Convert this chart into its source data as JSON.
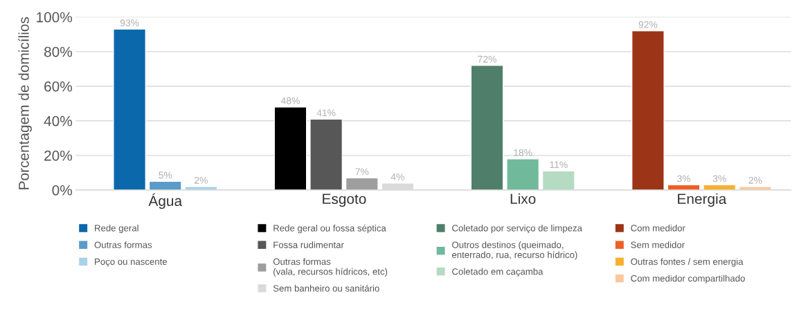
{
  "chart_data": {
    "type": "bar",
    "ylabel": "Porcentagem de domicílios",
    "categories": [
      "Água",
      "Esgoto",
      "Lixo",
      "Energia"
    ],
    "ylim": [
      0,
      100
    ],
    "yticks": [
      {
        "value": 0,
        "label": "0%"
      },
      {
        "value": 20,
        "label": "20%"
      },
      {
        "value": 40,
        "label": "40%"
      },
      {
        "value": 60,
        "label": "60%"
      },
      {
        "value": 80,
        "label": "80%"
      },
      {
        "value": 100,
        "label": "100%"
      }
    ],
    "grid": "y",
    "legend": "bottom",
    "series": [
      {
        "name": "Rede geral",
        "color": "#0b68aa",
        "values": [
          93,
          null,
          null,
          null
        ],
        "value_labels": [
          "93%",
          null,
          null,
          null
        ]
      },
      {
        "name": "Outras formas",
        "color": "#5b9bc8",
        "values": [
          5,
          null,
          null,
          null
        ],
        "value_labels": [
          "5%",
          null,
          null,
          null
        ]
      },
      {
        "name": "Poço ou nascente",
        "color": "#a9d2e8",
        "values": [
          2,
          null,
          null,
          null
        ],
        "value_labels": [
          "2%",
          null,
          null,
          null
        ]
      },
      {
        "name": "Rede geral ou fossa séptica",
        "color": "#000000",
        "values": [
          null,
          48,
          null,
          null
        ],
        "value_labels": [
          null,
          "48%",
          null,
          null
        ]
      },
      {
        "name": "Fossa rudimentar",
        "color": "#575757",
        "values": [
          null,
          41,
          null,
          null
        ],
        "value_labels": [
          null,
          "41%",
          null,
          null
        ]
      },
      {
        "name": "Outras formas\n(vala, recursos hídricos, etc)",
        "color": "#9e9e9e",
        "values": [
          null,
          7,
          null,
          null
        ],
        "value_labels": [
          null,
          "7%",
          null,
          null
        ]
      },
      {
        "name": "Sem banheiro ou sanitário",
        "color": "#dadada",
        "values": [
          null,
          4,
          null,
          null
        ],
        "value_labels": [
          null,
          "4%",
          null,
          null
        ]
      },
      {
        "name": "Coletado por serviço de limpeza",
        "color": "#4f7f6b",
        "values": [
          null,
          null,
          72,
          null
        ],
        "value_labels": [
          null,
          null,
          "72%",
          null
        ]
      },
      {
        "name": "Outros destinos (queimado,\nenterrado, rua, recurso hídrico)",
        "color": "#71b99b",
        "values": [
          null,
          null,
          18,
          null
        ],
        "value_labels": [
          null,
          null,
          "18%",
          null
        ]
      },
      {
        "name": "Coletado em caçamba",
        "color": "#b5dbc3",
        "values": [
          null,
          null,
          11,
          null
        ],
        "value_labels": [
          null,
          null,
          "11%",
          null
        ]
      },
      {
        "name": "Com medidor",
        "color": "#9c3418",
        "values": [
          null,
          null,
          null,
          92
        ],
        "value_labels": [
          null,
          null,
          null,
          "92%"
        ]
      },
      {
        "name": "Sem medidor",
        "color": "#ee5f26",
        "values": [
          null,
          null,
          null,
          3
        ],
        "value_labels": [
          null,
          null,
          null,
          "3%"
        ]
      },
      {
        "name": "Outras fontes / sem energia",
        "color": "#f7b12f",
        "values": [
          null,
          null,
          null,
          3
        ],
        "value_labels": [
          null,
          null,
          null,
          "3%"
        ]
      },
      {
        "name": "Com medidor compartilhado",
        "color": "#f8c9a1",
        "values": [
          null,
          null,
          null,
          2
        ],
        "value_labels": [
          null,
          null,
          null,
          "2%"
        ]
      }
    ]
  }
}
